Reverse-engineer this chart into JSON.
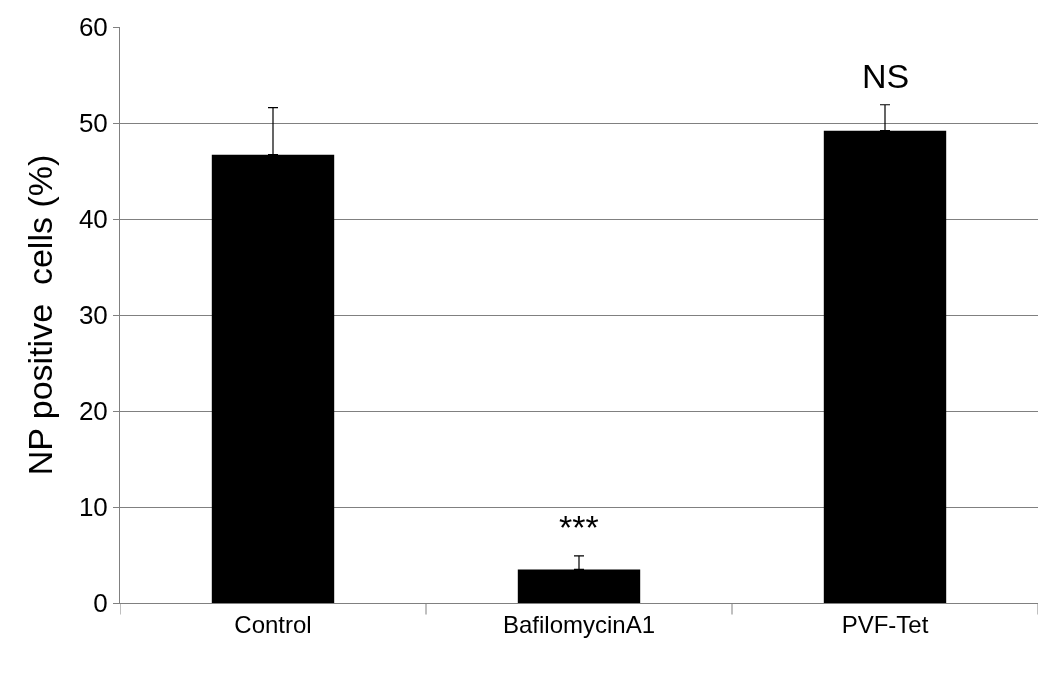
{
  "chart_data": {
    "type": "bar",
    "ylabel": "NP positive  cells (%)",
    "categories": [
      "Control",
      "BafilomycinA1",
      "PVF-Tet"
    ],
    "values": [
      46.7,
      3.5,
      49.2
    ],
    "color": "#000000",
    "errors": [
      [
        46.7,
        51.6
      ],
      [
        3.5,
        4.9
      ],
      [
        49.2,
        51.9
      ]
    ],
    "ylim": [
      0,
      60
    ],
    "yticks": [
      0,
      10,
      20,
      30,
      40,
      50,
      60
    ],
    "grid": "y",
    "legend": false,
    "annotations": [
      "***",
      "NS"
    ]
  }
}
